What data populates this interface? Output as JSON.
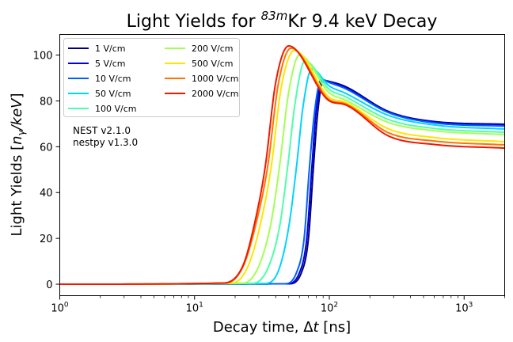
{
  "chart_data": {
    "type": "line",
    "title": "Light Yields for 83mKr 9.4 keV Decay",
    "title_parts": {
      "pre": "Light Yields for ",
      "sup": "83m",
      "post": "Kr 9.4 keV Decay"
    },
    "xlabel": "Decay time, Δt [ns]",
    "xlabel_parts": {
      "pre": "Decay time, Δ",
      "ital": "t",
      "post": " [ns]"
    },
    "ylabel": "Light Yields [nγ/keV]",
    "xscale": "log",
    "xlim": [
      1,
      2000
    ],
    "ylim": [
      -5,
      109
    ],
    "xticks": [
      {
        "v": 1,
        "base": "10",
        "exp": "0"
      },
      {
        "v": 10,
        "base": "10",
        "exp": "1"
      },
      {
        "v": 100,
        "base": "10",
        "exp": "2"
      },
      {
        "v": 1000,
        "base": "10",
        "exp": "3"
      }
    ],
    "yticks": [
      0,
      20,
      40,
      60,
      80,
      100
    ],
    "grid": false,
    "legend_placement": "top-left",
    "legend_columns": 2,
    "annotation": [
      "NEST v2.1.0",
      "nestpy v1.3.0"
    ],
    "series": [
      {
        "name": "1 V/cm",
        "color": "#00007f",
        "points": [
          [
            1,
            0
          ],
          [
            50,
            0.2
          ],
          [
            62,
            5
          ],
          [
            70,
            20
          ],
          [
            76,
            50
          ],
          [
            82,
            75
          ],
          [
            90,
            89
          ],
          [
            100,
            88.5
          ],
          [
            130,
            86.4
          ],
          [
            277,
            75.3
          ],
          [
            600,
            71
          ],
          [
            2000,
            69.8
          ]
        ]
      },
      {
        "name": "5 V/cm",
        "color": "#0000e0",
        "points": [
          [
            1,
            0
          ],
          [
            48,
            0.2
          ],
          [
            60,
            5
          ],
          [
            68,
            20
          ],
          [
            74,
            50
          ],
          [
            80,
            76
          ],
          [
            89,
            89
          ],
          [
            100,
            88.3
          ],
          [
            130,
            86
          ],
          [
            277,
            75
          ],
          [
            600,
            70.8
          ],
          [
            2000,
            69.5
          ]
        ]
      },
      {
        "name": "10 V/cm",
        "color": "#0060ff",
        "points": [
          [
            1,
            0
          ],
          [
            46,
            0.2
          ],
          [
            57,
            5
          ],
          [
            65,
            20
          ],
          [
            71,
            50
          ],
          [
            78,
            76
          ],
          [
            87,
            89.5
          ],
          [
            100,
            88
          ],
          [
            130,
            85.5
          ],
          [
            277,
            74.8
          ],
          [
            600,
            70.4
          ],
          [
            2000,
            69.0
          ]
        ]
      },
      {
        "name": "50 V/cm",
        "color": "#00d4ff",
        "points": [
          [
            1,
            0
          ],
          [
            33,
            0.3
          ],
          [
            42,
            6
          ],
          [
            50,
            25
          ],
          [
            57,
            51
          ],
          [
            64,
            78
          ],
          [
            74,
            94
          ],
          [
            100,
            86.5
          ],
          [
            130,
            83.5
          ],
          [
            277,
            73.6
          ],
          [
            600,
            69.5
          ],
          [
            2000,
            67.7
          ]
        ]
      },
      {
        "name": "100 V/cm",
        "color": "#4cffaa",
        "points": [
          [
            1,
            0
          ],
          [
            27,
            0.4
          ],
          [
            35,
            7
          ],
          [
            43,
            26
          ],
          [
            49,
            51
          ],
          [
            56,
            80
          ],
          [
            66,
            97.5
          ],
          [
            100,
            85
          ],
          [
            130,
            82
          ],
          [
            277,
            71.8
          ],
          [
            600,
            68
          ],
          [
            2000,
            66.3
          ]
        ]
      },
      {
        "name": "200 V/cm",
        "color": "#a4ff53",
        "points": [
          [
            1,
            0
          ],
          [
            23,
            0.5
          ],
          [
            30,
            8
          ],
          [
            37,
            27
          ],
          [
            42.6,
            51
          ],
          [
            50,
            84
          ],
          [
            60,
            100
          ],
          [
            100,
            83.5
          ],
          [
            130,
            80.5
          ],
          [
            277,
            70.5
          ],
          [
            600,
            67
          ],
          [
            2000,
            65.3
          ]
        ]
      },
      {
        "name": "500 V/cm",
        "color": "#ffe500",
        "points": [
          [
            1,
            0
          ],
          [
            19,
            0.5
          ],
          [
            25,
            8
          ],
          [
            31,
            27
          ],
          [
            37,
            51
          ],
          [
            44,
            86
          ],
          [
            55,
            102
          ],
          [
            100,
            81.5
          ],
          [
            130,
            79.5
          ],
          [
            277,
            67.7
          ],
          [
            600,
            64
          ],
          [
            2000,
            62.2
          ]
        ]
      },
      {
        "name": "1000 V/cm",
        "color": "#ff7300",
        "points": [
          [
            1,
            0
          ],
          [
            17,
            0.5
          ],
          [
            23,
            8
          ],
          [
            29,
            28
          ],
          [
            34.8,
            51
          ],
          [
            42,
            88
          ],
          [
            52,
            103
          ],
          [
            100,
            80.5
          ],
          [
            130,
            78.8
          ],
          [
            277,
            66.0
          ],
          [
            600,
            62.5
          ],
          [
            2000,
            60.8
          ]
        ]
      },
      {
        "name": "2000 V/cm",
        "color": "#ef1800",
        "points": [
          [
            1,
            0
          ],
          [
            16,
            0.5
          ],
          [
            22.8,
            8
          ],
          [
            28,
            27
          ],
          [
            33.4,
            51
          ],
          [
            40,
            88
          ],
          [
            50,
            104
          ],
          [
            100,
            80
          ],
          [
            130,
            78.4
          ],
          [
            277,
            64.6
          ],
          [
            600,
            61
          ],
          [
            2000,
            59.4
          ]
        ]
      }
    ]
  }
}
